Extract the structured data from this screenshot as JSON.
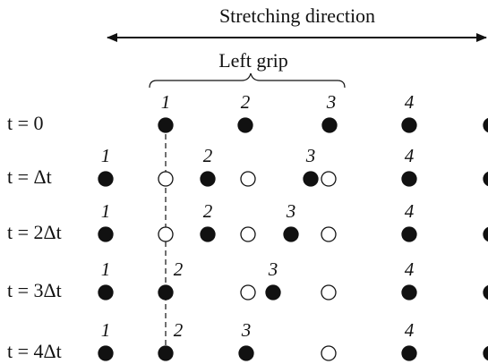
{
  "header": {
    "title": "Stretching direction",
    "grip": "Left grip"
  },
  "rows": [
    {
      "label": "t = 0",
      "particles": [
        "1",
        "2",
        "3",
        "4"
      ]
    },
    {
      "label": "t = Δt",
      "particles": [
        "1",
        "2",
        "3",
        "4"
      ]
    },
    {
      "label": "t = 2Δt",
      "particles": [
        "1",
        "2",
        "3",
        "4"
      ]
    },
    {
      "label": "t = 3Δt",
      "particles": [
        "1",
        "2",
        "3",
        "4"
      ]
    },
    {
      "label": "t = 4Δt",
      "particles": [
        "1",
        "2",
        "3",
        "4"
      ]
    }
  ]
}
